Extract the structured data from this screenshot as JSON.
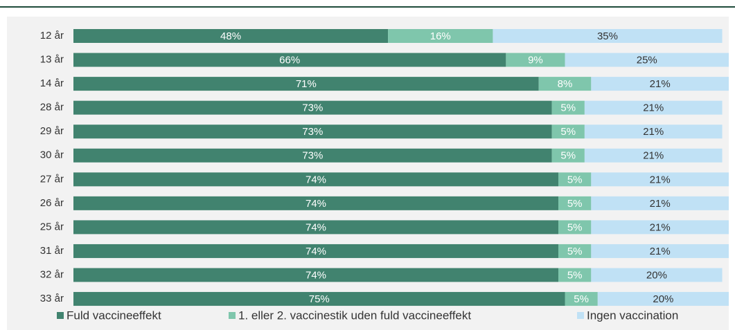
{
  "chart_data": {
    "type": "stacked-bar-horizontal",
    "categories": [
      "12 år",
      "13 år",
      "14 år",
      "28 år",
      "29 år",
      "30 år",
      "27 år",
      "26 år",
      "25 år",
      "31 år",
      "32 år",
      "33 år"
    ],
    "xlim": [
      0,
      100
    ],
    "legend": "bottom",
    "series": [
      {
        "name": "Fuld vaccineeffekt",
        "color": "#41836f",
        "values": [
          48,
          66,
          71,
          73,
          73,
          73,
          74,
          74,
          74,
          74,
          74,
          75
        ],
        "value_labels": [
          "48%",
          "66%",
          "71%",
          "73%",
          "73%",
          "73%",
          "74%",
          "74%",
          "74%",
          "74%",
          "74%",
          "75%"
        ]
      },
      {
        "name": "1. eller 2. vaccinestik uden fuld vaccineeffekt",
        "color": "#7fc6ac",
        "values": [
          16,
          9,
          8,
          5,
          5,
          5,
          5,
          5,
          5,
          5,
          5,
          5
        ],
        "value_labels": [
          "16%",
          "9%",
          "8%",
          "5%",
          "5%",
          "5%",
          "5%",
          "5%",
          "5%",
          "5%",
          "5%",
          "5%"
        ]
      },
      {
        "name": "Ingen vaccination",
        "color": "#c0e1f5",
        "values": [
          35,
          25,
          21,
          21,
          21,
          21,
          21,
          21,
          21,
          21,
          20,
          20
        ],
        "value_labels": [
          "35%",
          "25%",
          "21%",
          "21%",
          "21%",
          "21%",
          "21%",
          "21%",
          "21%",
          "21%",
          "20%",
          "20%"
        ]
      }
    ]
  }
}
